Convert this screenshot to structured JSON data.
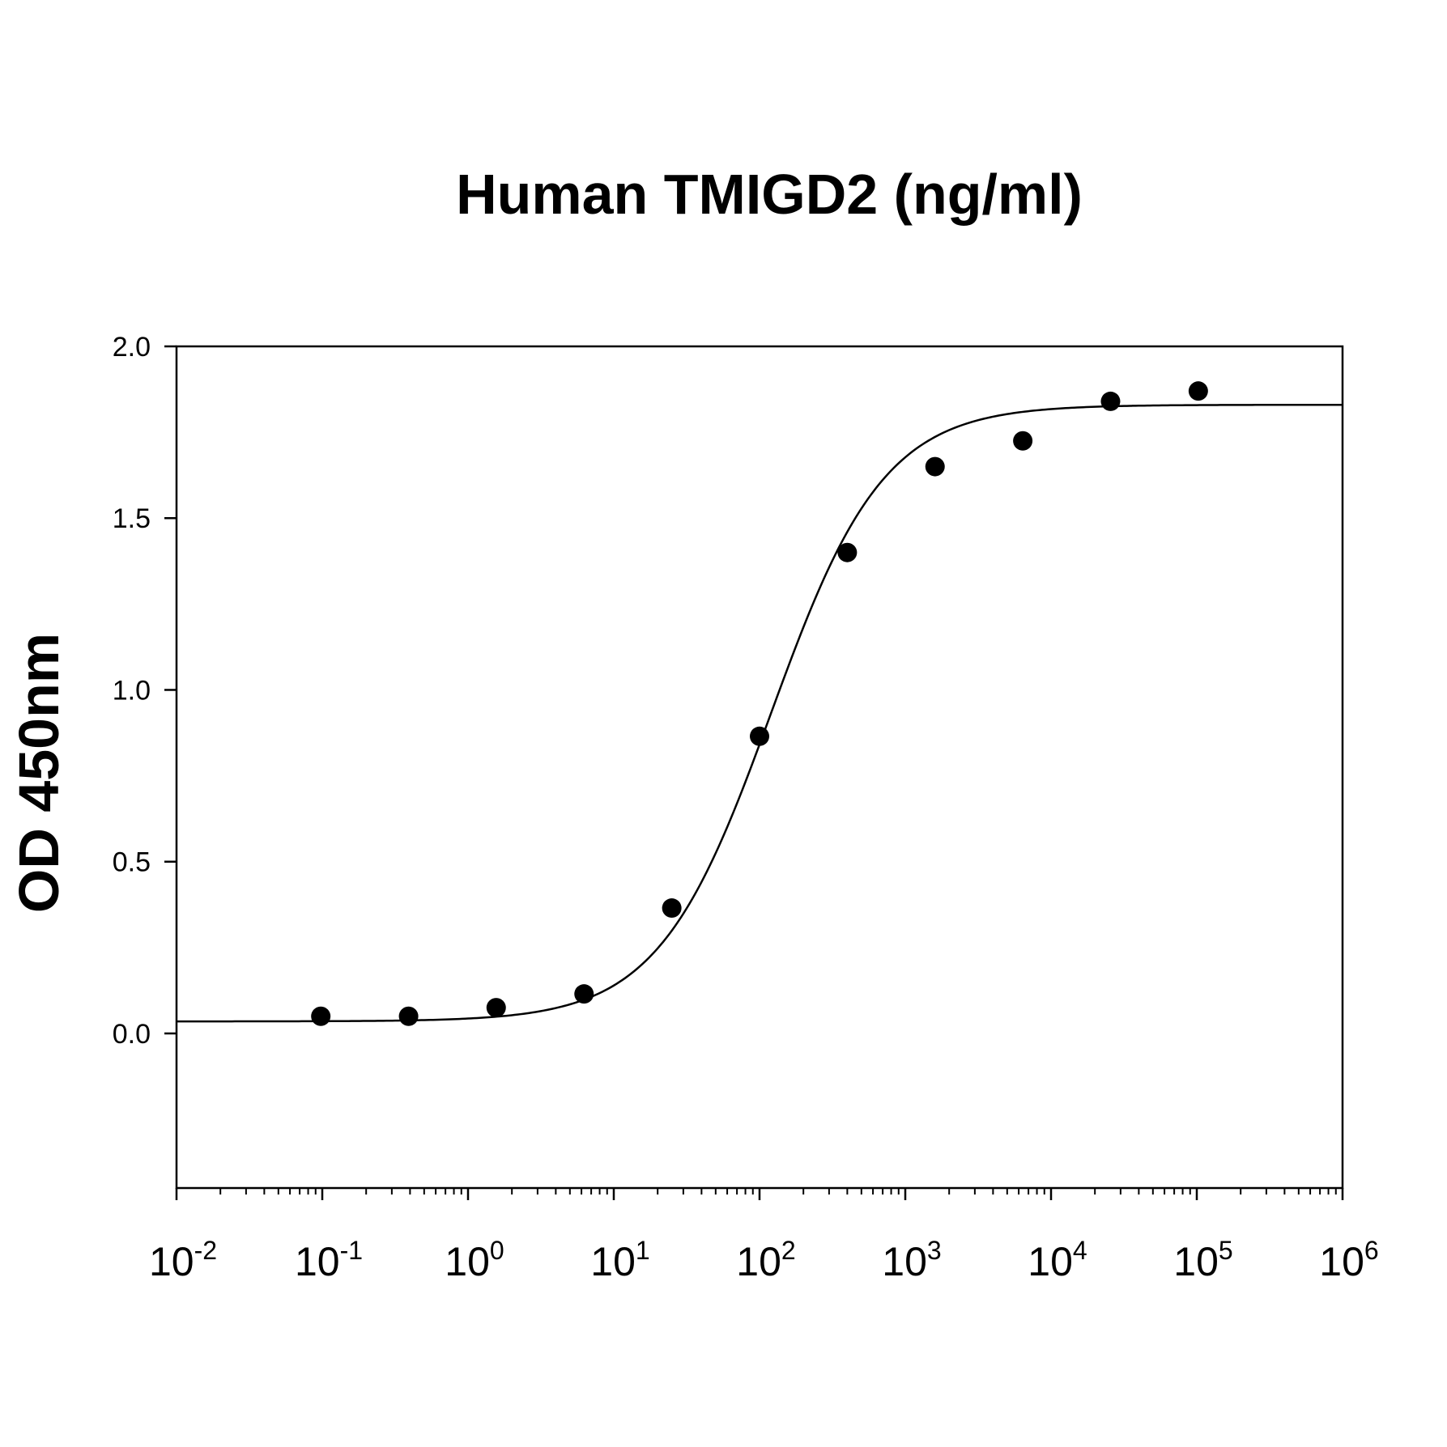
{
  "chart_data": {
    "type": "scatter",
    "title": "Human TMIGD2 (ng/ml)",
    "xlabel": "",
    "ylabel": "OD 450nm",
    "x_scale": "log",
    "xlim": [
      0.01,
      1000000
    ],
    "ylim": [
      -0.45,
      2.0
    ],
    "grid": false,
    "y_ticks": [
      {
        "value": 0.0,
        "label": "0.0"
      },
      {
        "value": 0.5,
        "label": "0.5"
      },
      {
        "value": 1.0,
        "label": "1.0"
      },
      {
        "value": 1.5,
        "label": "1.5"
      },
      {
        "value": 2.0,
        "label": "2.0"
      }
    ],
    "x_ticks": [
      {
        "value": 0.01,
        "base": "10",
        "exp": "-2"
      },
      {
        "value": 0.1,
        "base": "10",
        "exp": "-1"
      },
      {
        "value": 1,
        "base": "10",
        "exp": "0"
      },
      {
        "value": 10,
        "base": "10",
        "exp": "1"
      },
      {
        "value": 100,
        "base": "10",
        "exp": "2"
      },
      {
        "value": 1000,
        "base": "10",
        "exp": "3"
      },
      {
        "value": 10000,
        "base": "10",
        "exp": "4"
      },
      {
        "value": 100000,
        "base": "10",
        "exp": "5"
      },
      {
        "value": 1000000,
        "base": "10",
        "exp": "6"
      }
    ],
    "series": [
      {
        "points": [
          {
            "x": 0.0977,
            "y": 0.05
          },
          {
            "x": 0.391,
            "y": 0.05
          },
          {
            "x": 1.56,
            "y": 0.075
          },
          {
            "x": 6.25,
            "y": 0.115
          },
          {
            "x": 25,
            "y": 0.365
          },
          {
            "x": 100,
            "y": 0.865
          },
          {
            "x": 400,
            "y": 1.4
          },
          {
            "x": 1600,
            "y": 1.65
          },
          {
            "x": 6400,
            "y": 1.725
          },
          {
            "x": 25600,
            "y": 1.84
          },
          {
            "x": 102400,
            "y": 1.87
          }
        ]
      }
    ],
    "fit_curve": {
      "bottom": 0.035,
      "top": 1.83,
      "ec50": 120,
      "hill": 1.12
    }
  }
}
